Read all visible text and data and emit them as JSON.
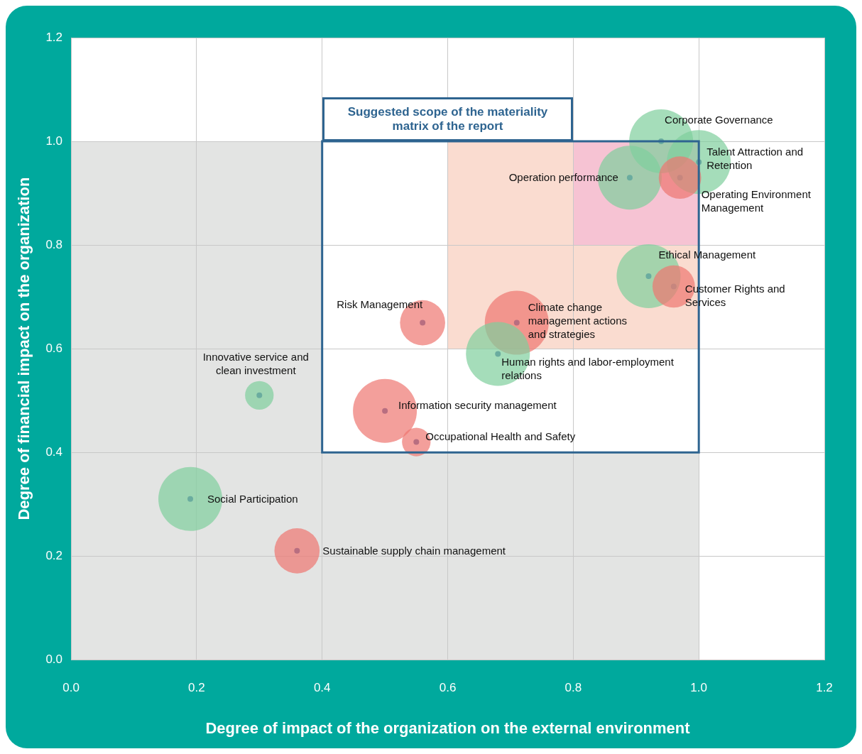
{
  "chart_data": {
    "type": "bubble",
    "xlabel": "Degree of impact of the organization on the external environment",
    "ylabel": "Degree of financial impact on the organization",
    "x": [
      0.94,
      1.0,
      0.89,
      0.97,
      0.92,
      0.96,
      0.71,
      0.56,
      0.68,
      0.3,
      0.5,
      0.55,
      0.19,
      0.36
    ],
    "values": [
      1.0,
      0.96,
      0.93,
      0.93,
      0.74,
      0.72,
      0.65,
      0.65,
      0.59,
      0.51,
      0.48,
      0.42,
      0.31,
      0.21
    ],
    "sizes": [
      1,
      1,
      1,
      0.44,
      1,
      0.44,
      1,
      0.5,
      1,
      0.2,
      1,
      0.2,
      1,
      0.5
    ],
    "colors": [
      "#7fcf9c",
      "#7fcf9c",
      "#7fcf9c",
      "#ee7670",
      "#7fcf9c",
      "#ee7670",
      "#ee7670",
      "#ee7670",
      "#7fcf9c",
      "#7fcf9c",
      "#ee7670",
      "#ee7670",
      "#7fcf9c",
      "#ee7670"
    ],
    "xlim": [
      0,
      1.2
    ],
    "ylim": [
      0,
      1.2
    ],
    "xticks": [
      {
        "value": 0,
        "label": "0.0"
      },
      {
        "value": 0.2,
        "label": "0.2"
      },
      {
        "value": 0.4,
        "label": "0.4"
      },
      {
        "value": 0.6,
        "label": "0.6"
      },
      {
        "value": 0.8,
        "label": "0.8"
      },
      {
        "value": 1,
        "label": "1.0"
      },
      {
        "value": 1.2,
        "label": "1.2"
      }
    ],
    "yticks": [
      {
        "value": 0,
        "label": "0.0"
      },
      {
        "value": 0.2,
        "label": "0.2"
      },
      {
        "value": 0.4,
        "label": "0.4"
      },
      {
        "value": 0.6,
        "label": "0.6"
      },
      {
        "value": 0.8,
        "label": "0.8"
      },
      {
        "value": 1,
        "label": "1.0"
      },
      {
        "value": 1.2,
        "label": "1.2"
      }
    ],
    "grid": true,
    "legend": false,
    "bands": [
      {
        "axis": "x",
        "from": 0,
        "to": 1,
        "color": "#e3e4e3"
      },
      {
        "axis": "x",
        "from": 0.4,
        "to": 1,
        "color": "#ffffff"
      },
      {
        "axis": "x",
        "from": 0.6,
        "to": 1,
        "color": "#fadcd0"
      },
      {
        "axis": "x",
        "from": 0.8,
        "to": 1,
        "color": "#f6c3d3"
      }
    ],
    "annotations": [
      {
        "text": "Corporate Governance",
        "x": 0.94,
        "y": 1.0
      },
      {
        "text": "Talent Attraction and Retention",
        "x": 1.0,
        "y": 0.96
      },
      {
        "text": "Operation performance",
        "x": 0.89,
        "y": 0.93
      },
      {
        "text": "Operating Environment Management",
        "x": 0.97,
        "y": 0.93
      },
      {
        "text": "Ethical Management",
        "x": 0.92,
        "y": 0.74
      },
      {
        "text": "Customer Rights and Services",
        "x": 0.96,
        "y": 0.72
      },
      {
        "text": "Climate change management actions and strategies",
        "x": 0.71,
        "y": 0.65
      },
      {
        "text": "Risk Management",
        "x": 0.56,
        "y": 0.65
      },
      {
        "text": "Human rights and labor-employment relations",
        "x": 0.68,
        "y": 0.59
      },
      {
        "text": "Innovative service and clean investment",
        "x": 0.3,
        "y": 0.51
      },
      {
        "text": "Information security management",
        "x": 0.5,
        "y": 0.48
      },
      {
        "text": "Occupational Health and Safety",
        "x": 0.55,
        "y": 0.42
      },
      {
        "text": "Social Participation",
        "x": 0.19,
        "y": 0.31
      },
      {
        "text": "Sustainable supply chain management",
        "x": 0.36,
        "y": 0.21
      },
      "Suggested scope of the materiality matrix of the report"
    ]
  }
}
